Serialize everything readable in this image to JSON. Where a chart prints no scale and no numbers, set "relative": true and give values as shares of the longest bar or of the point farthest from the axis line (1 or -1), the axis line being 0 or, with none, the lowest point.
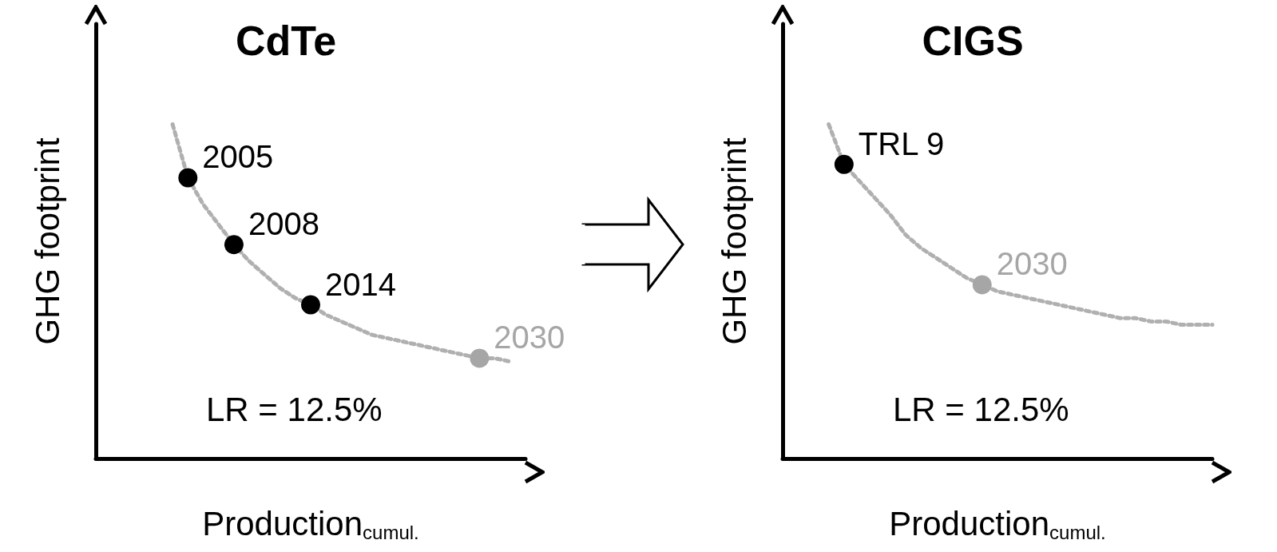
{
  "chart_data": [
    {
      "type": "line",
      "title": "CdTe",
      "xlabel": "Production$_{cumul.}$",
      "ylabel": "GHG footprint",
      "relative": true,
      "grid": false,
      "line_style": "dotted",
      "annotations": [
        "2005",
        "2008",
        "2014",
        "2030",
        "LR = 12.5%"
      ],
      "categories": [
        null,
        null,
        null,
        null,
        null,
        null,
        null,
        null,
        null,
        null,
        null,
        null,
        null,
        null,
        null,
        null,
        null,
        null,
        null,
        null,
        null,
        null,
        null,
        null,
        null,
        null,
        null,
        null,
        null
      ],
      "series": [
        {
          "color": "#b0b0b0",
          "values": [
            null,
            null,
            null,
            null,
            null,
            1,
            0.84,
            0.76,
            0.7,
            0.64,
            0.59,
            0.55,
            0.51,
            0.48,
            0.46,
            0.43,
            0.41,
            0.39,
            0.37,
            0.36,
            0.35,
            0.34,
            0.33,
            0.32,
            0.31,
            0.3,
            0.3,
            0.29,
            null
          ],
          "colors": [
            null,
            null,
            null,
            null,
            null,
            null,
            "#000000",
            null,
            null,
            "#000000",
            null,
            null,
            null,
            null,
            "#000000",
            null,
            null,
            null,
            null,
            null,
            null,
            null,
            null,
            null,
            null,
            "#a6a6a6",
            null,
            null,
            null
          ]
        }
      ]
    },
    {
      "type": "line",
      "title": "CIGS",
      "xlabel": "Production$_{cumul.}$",
      "ylabel": "GHG footprint",
      "relative": true,
      "grid": false,
      "line_style": "dotted",
      "annotations": [
        "TRL 9",
        "2030",
        "LR = 12.5%"
      ],
      "categories": [
        null,
        null,
        null,
        null,
        null,
        null,
        null,
        null,
        null,
        null,
        null,
        null,
        null,
        null,
        null,
        null,
        null,
        null,
        null,
        null,
        null,
        null,
        null,
        null,
        null,
        null,
        null,
        null,
        null
      ],
      "series": [
        {
          "color": "#b0b0b0",
          "values": [
            null,
            null,
            null,
            1,
            0.88,
            0.83,
            0.78,
            0.73,
            0.67,
            0.63,
            0.6,
            0.57,
            0.54,
            0.52,
            0.5,
            0.49,
            0.48,
            0.47,
            0.46,
            0.45,
            0.44,
            0.43,
            0.42,
            0.42,
            0.41,
            0.41,
            0.4,
            0.4,
            0.4
          ],
          "colors": [
            null,
            null,
            null,
            null,
            "#000000",
            null,
            null,
            null,
            null,
            null,
            null,
            null,
            null,
            "#a6a6a6",
            null,
            null,
            null,
            null,
            null,
            null,
            null,
            null,
            null,
            null,
            null,
            null,
            null,
            null,
            null
          ]
        }
      ]
    }
  ]
}
